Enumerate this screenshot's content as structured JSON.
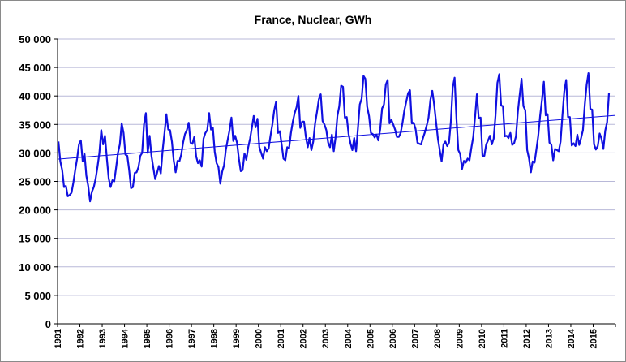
{
  "chart_data": {
    "type": "line",
    "title": "France, Nuclear, GWh",
    "xlabel": "",
    "ylabel": "",
    "ylim": [
      0,
      50000
    ],
    "xlim": [
      1991,
      2016
    ],
    "grid": true,
    "legend": "none",
    "y_ticks": [
      0,
      5000,
      10000,
      15000,
      20000,
      25000,
      30000,
      35000,
      40000,
      45000,
      50000
    ],
    "y_tick_labels": [
      "0",
      "5 000",
      "10 000",
      "15 000",
      "20 000",
      "25 000",
      "30 000",
      "35 000",
      "40 000",
      "45 000",
      "50 000"
    ],
    "x_tick_labels": [
      "1991",
      "1992",
      "1993",
      "1994",
      "1995",
      "1996",
      "1997",
      "1998",
      "1999",
      "2000",
      "2001",
      "2002",
      "2003",
      "2004",
      "2005",
      "2006",
      "2007",
      "2008",
      "2009",
      "2010",
      "2011",
      "2012",
      "2013",
      "2014",
      "2015"
    ],
    "series": [
      {
        "color": "#1010e0",
        "start_year": 1991,
        "values": [
          32000,
          28500,
          27000,
          24000,
          24200,
          22400,
          22600,
          23000,
          24800,
          27000,
          29000,
          31500,
          32200,
          28500,
          29800,
          26000,
          24200,
          21500,
          23200,
          24000,
          25500,
          27600,
          30000,
          34000,
          31500,
          33000,
          29000,
          25500,
          24000,
          25200,
          25000,
          27400,
          30000,
          31500,
          35200,
          33500,
          29700,
          29500,
          27000,
          23800,
          24000,
          26500,
          26600,
          27500,
          29500,
          30000,
          35000,
          37000,
          30000,
          33000,
          29500,
          27400,
          25400,
          26500,
          27700,
          26400,
          30500,
          33500,
          36800,
          34100,
          34000,
          32000,
          28600,
          26600,
          28600,
          28500,
          29700,
          31800,
          33300,
          34000,
          35300,
          31800,
          31600,
          32800,
          29400,
          28200,
          28700,
          27600,
          32500,
          33500,
          34000,
          37000,
          34100,
          34400,
          30200,
          28200,
          27500,
          24600,
          26700,
          27800,
          30500,
          32300,
          34000,
          36200,
          32100,
          33000,
          31800,
          29000,
          26800,
          27000,
          29900,
          28800,
          31000,
          32500,
          34500,
          36500,
          34500,
          36000,
          31000,
          30000,
          29000,
          31000,
          30300,
          30800,
          33000,
          35000,
          37500,
          39000,
          33500,
          33800,
          31500,
          29000,
          28700,
          31000,
          30800,
          33500,
          35500,
          37000,
          38000,
          40000,
          34400,
          35500,
          35500,
          32800,
          31000,
          32600,
          30500,
          32000,
          35200,
          37200,
          39400,
          40300,
          35600,
          35000,
          34000,
          31800,
          31000,
          33200,
          30300,
          32800,
          36500,
          38200,
          41800,
          41600,
          36200,
          36300,
          33300,
          31700,
          30500,
          32600,
          30300,
          34300,
          38500,
          39500,
          43500,
          43000,
          38100,
          36500,
          33500,
          33300,
          32700,
          33200,
          32200,
          34200,
          37800,
          38500,
          42000,
          42800,
          35200,
          35800,
          35000,
          34100,
          32800,
          32800,
          33500,
          35300,
          37500,
          39000,
          40500,
          41000,
          35200,
          35300,
          34200,
          31800,
          31600,
          31500,
          32600,
          33600,
          34800,
          36200,
          39300,
          40900,
          38500,
          35500,
          32500,
          30500,
          28500,
          31500,
          32000,
          31200,
          31800,
          35500,
          41500,
          43200,
          36000,
          30500,
          29800,
          27200,
          28600,
          28300,
          29000,
          28700,
          30900,
          32800,
          36400,
          40300,
          36100,
          36200,
          29500,
          29500,
          31500,
          32200,
          33000,
          31500,
          32500,
          36600,
          42300,
          43800,
          38300,
          38200,
          32900,
          33000,
          32600,
          33500,
          31400,
          31700,
          32900,
          37200,
          40200,
          43000,
          38200,
          37500,
          30500,
          29000,
          26600,
          28500,
          28300,
          30600,
          33000,
          36500,
          39300,
          42500,
          36600,
          36800,
          31800,
          31500,
          28700,
          30700,
          30500,
          30300,
          32000,
          36600,
          40800,
          42800,
          36300,
          36300,
          31300,
          31700,
          31200,
          33200,
          31400,
          32600,
          34000,
          38500,
          42000,
          44000,
          37700,
          37600,
          31500,
          30600,
          31200,
          33400,
          32500,
          30700,
          33900,
          35400,
          40500
        ]
      },
      {
        "type": "trendline",
        "color": "#1010e0",
        "x": [
          1991,
          2016
        ],
        "y": [
          28900,
          36600
        ]
      }
    ]
  }
}
